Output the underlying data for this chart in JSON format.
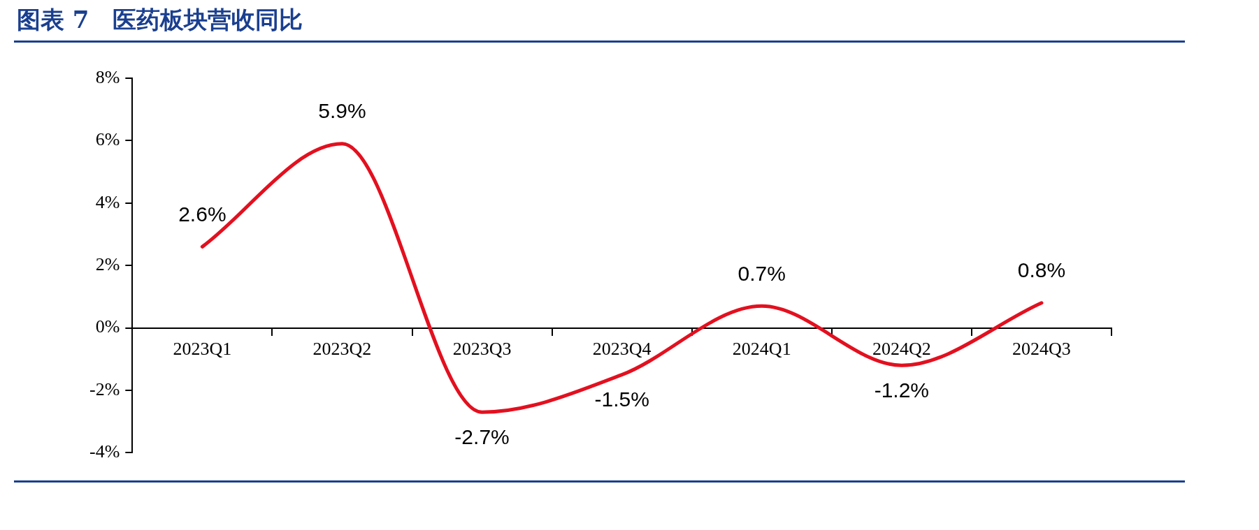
{
  "chart_data": {
    "type": "line",
    "title": "图表 7　医药板块营收同比",
    "categories": [
      "2023Q1",
      "2023Q2",
      "2023Q3",
      "2023Q4",
      "2024Q1",
      "2024Q2",
      "2024Q3"
    ],
    "series": [
      {
        "color": "#e3101f",
        "values": [
          2.6,
          5.9,
          -2.7,
          -1.5,
          0.7,
          -1.2,
          0.8
        ],
        "value_labels": [
          "2.6%",
          "5.9%",
          "-2.7%",
          "-1.5%",
          "0.7%",
          "-1.2%",
          "0.8%"
        ]
      }
    ],
    "ylim": [
      -4,
      8
    ],
    "yticks": [
      {
        "value": -4,
        "label": "-4%"
      },
      {
        "value": -2,
        "label": "-2%"
      },
      {
        "value": 0,
        "label": "0%"
      },
      {
        "value": 2,
        "label": "2%"
      },
      {
        "value": 4,
        "label": "4%"
      },
      {
        "value": 6,
        "label": "6%"
      },
      {
        "value": 8,
        "label": "8%"
      }
    ],
    "grid": false,
    "legend": false,
    "marker": "none",
    "line_style": "solid"
  }
}
